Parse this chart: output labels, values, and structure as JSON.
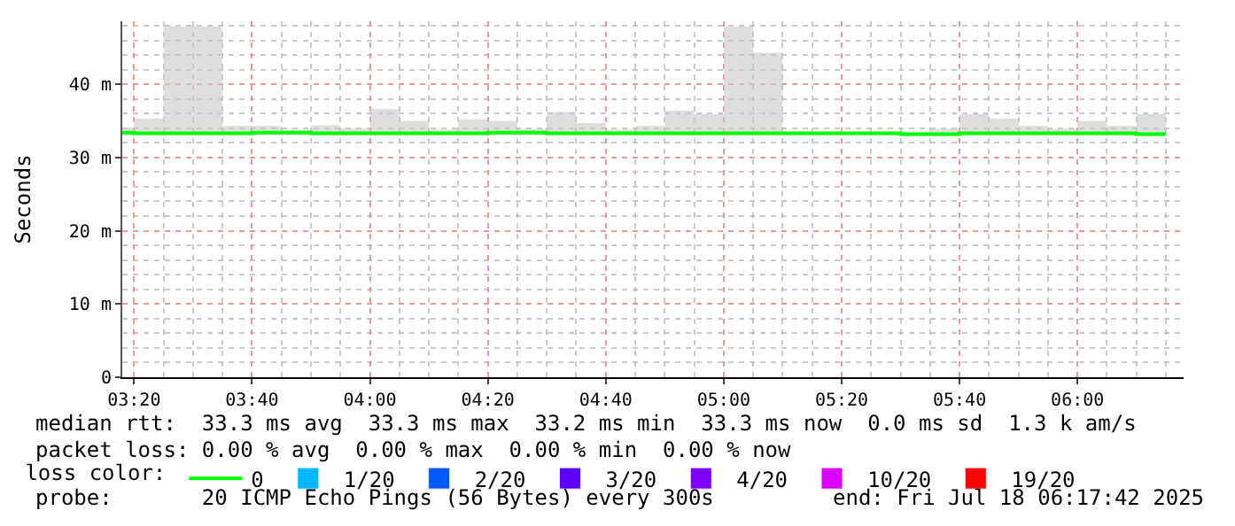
{
  "chart_data": {
    "type": "step",
    "ylabel": "Seconds",
    "x": [
      "2025-07-18T03:18",
      "2025-07-18T03:20",
      "2025-07-18T03:25",
      "2025-07-18T03:30",
      "2025-07-18T03:35",
      "2025-07-18T03:40",
      "2025-07-18T03:45",
      "2025-07-18T03:50",
      "2025-07-18T03:55",
      "2025-07-18T04:00",
      "2025-07-18T04:05",
      "2025-07-18T04:10",
      "2025-07-18T04:15",
      "2025-07-18T04:20",
      "2025-07-18T04:25",
      "2025-07-18T04:30",
      "2025-07-18T04:35",
      "2025-07-18T04:40",
      "2025-07-18T04:45",
      "2025-07-18T04:50",
      "2025-07-18T04:55",
      "2025-07-18T05:00",
      "2025-07-18T05:05",
      "2025-07-18T05:10",
      "2025-07-18T05:15",
      "2025-07-18T05:20",
      "2025-07-18T05:25",
      "2025-07-18T05:30",
      "2025-07-18T05:35",
      "2025-07-18T05:40",
      "2025-07-18T05:45",
      "2025-07-18T05:50",
      "2025-07-18T05:55",
      "2025-07-18T06:00",
      "2025-07-18T06:05",
      "2025-07-18T06:10",
      "2025-07-18T06:15"
    ],
    "series": [
      {
        "name": "0",
        "color": "#00ff00",
        "values": [
          33.4,
          33.3,
          33.3,
          33.3,
          33.3,
          33.4,
          33.4,
          33.3,
          33.3,
          33.3,
          33.3,
          33.3,
          33.3,
          33.4,
          33.4,
          33.3,
          33.3,
          33.3,
          33.3,
          33.3,
          33.3,
          33.3,
          33.3,
          33.3,
          33.3,
          33.3,
          33.3,
          33.2,
          33.2,
          33.3,
          33.3,
          33.3,
          33.3,
          33.3,
          33.3,
          33.2,
          33.2
        ],
        "lower": [
          33.0,
          33.0,
          33.0,
          33.0,
          33.0,
          33.0,
          33.0,
          33.0,
          33.0,
          33.0,
          33.0,
          33.0,
          33.0,
          33.0,
          33.0,
          33.0,
          33.0,
          33.0,
          33.0,
          33.0,
          33.0,
          33.0,
          33.0,
          33.0,
          33.0,
          33.0,
          33.0,
          32.9,
          32.9,
          33.0,
          33.0,
          33.0,
          33.0,
          33.0,
          33.0,
          32.9,
          32.9
        ],
        "upper": [
          34.1,
          35.3,
          47.9,
          47.9,
          34.3,
          34.3,
          33.8,
          34.4,
          33.9,
          36.6,
          35.0,
          33.8,
          35.2,
          35.0,
          33.9,
          36.2,
          34.7,
          33.8,
          34.3,
          36.4,
          35.9,
          47.9,
          44.3,
          33.5,
          33.5,
          33.5,
          33.5,
          33.4,
          33.9,
          35.9,
          35.3,
          34.3,
          33.9,
          35.0,
          34.3,
          35.9,
          35.9
        ]
      },
      {
        "name": "1/20",
        "color": "#00b8ff",
        "type": "bar",
        "values": [
          null,
          null,
          null,
          null,
          null,
          null,
          null,
          null,
          null,
          null,
          null,
          null,
          null,
          null,
          null,
          null,
          null,
          null,
          null,
          null,
          null,
          null,
          null,
          null,
          null,
          null,
          null,
          null,
          null,
          null,
          null,
          null,
          null,
          null,
          null,
          null,
          null
        ]
      },
      {
        "name": "2/20",
        "color": "#0059ff",
        "type": "bar",
        "values": [
          null,
          null,
          null,
          null,
          null,
          null,
          null,
          null,
          null,
          null,
          null,
          null,
          null,
          null,
          null,
          null,
          null,
          null,
          null,
          null,
          null,
          null,
          null,
          null,
          null,
          null,
          null,
          null,
          null,
          null,
          null,
          null,
          null,
          null,
          null,
          null,
          null
        ]
      },
      {
        "name": "3/20",
        "color": "#5e00ff",
        "type": "bar",
        "values": [
          null,
          null,
          null,
          null,
          null,
          null,
          null,
          null,
          null,
          null,
          null,
          null,
          null,
          null,
          null,
          null,
          null,
          null,
          null,
          null,
          null,
          null,
          null,
          null,
          null,
          null,
          null,
          null,
          null,
          null,
          null,
          null,
          null,
          null,
          null,
          null,
          null
        ]
      },
      {
        "name": "4/20",
        "color": "#7e00ff",
        "type": "bar",
        "values": [
          null,
          null,
          null,
          null,
          null,
          null,
          null,
          null,
          null,
          null,
          null,
          null,
          null,
          null,
          null,
          null,
          null,
          null,
          null,
          null,
          null,
          null,
          null,
          null,
          null,
          null,
          null,
          null,
          null,
          null,
          null,
          null,
          null,
          null,
          null,
          null,
          null
        ]
      },
      {
        "name": "10/20",
        "color": "#dd00ff",
        "type": "bar",
        "values": [
          null,
          null,
          null,
          null,
          null,
          null,
          null,
          null,
          null,
          null,
          null,
          null,
          null,
          null,
          null,
          null,
          null,
          null,
          null,
          null,
          null,
          null,
          null,
          null,
          null,
          null,
          null,
          null,
          null,
          null,
          null,
          null,
          null,
          null,
          null,
          null,
          null
        ]
      },
      {
        "name": "19/20",
        "color": "#ff0000",
        "type": "bar",
        "values": [
          null,
          null,
          null,
          null,
          null,
          null,
          null,
          null,
          null,
          null,
          null,
          null,
          null,
          null,
          null,
          null,
          null,
          null,
          null,
          null,
          null,
          null,
          null,
          null,
          null,
          null,
          null,
          null,
          null,
          null,
          null,
          null,
          null,
          null,
          null,
          null,
          null
        ]
      }
    ],
    "legend_title": "loss color:",
    "legend": "bottom",
    "xlim": [
      "2025-07-18T03:18",
      "2025-07-18T06:18"
    ],
    "xticks": [
      {
        "value": "2025-07-18T03:20",
        "label": "03:20"
      },
      {
        "value": "2025-07-18T03:40",
        "label": "03:40"
      },
      {
        "value": "2025-07-18T04:00",
        "label": "04:00"
      },
      {
        "value": "2025-07-18T04:20",
        "label": "04:20"
      },
      {
        "value": "2025-07-18T04:40",
        "label": "04:40"
      },
      {
        "value": "2025-07-18T05:00",
        "label": "05:00"
      },
      {
        "value": "2025-07-18T05:20",
        "label": "05:20"
      },
      {
        "value": "2025-07-18T05:40",
        "label": "05:40"
      },
      {
        "value": "2025-07-18T06:00",
        "label": "06:00"
      }
    ],
    "ylim": [
      0,
      48.6
    ],
    "yticks": [
      0,
      {
        "value": 10,
        "label": "10 m"
      },
      {
        "value": 20,
        "label": "20 m"
      },
      {
        "value": 30,
        "label": "30 m"
      },
      {
        "value": 40,
        "label": "40 m"
      }
    ],
    "grid": true,
    "annotations": [
      "median rtt:  33.3 ms avg  33.3 ms max  33.2 ms min  33.3 ms now  0.0 ms sd  1.3 k am/s",
      "packet loss: 0.00 % avg  0.00 % max  0.00 % min  0.00 % now",
      "probe:       20 ICMP Echo Pings (56 Bytes) every 300s",
      "end: Fri Jul 18 06:17:42 2025"
    ]
  }
}
